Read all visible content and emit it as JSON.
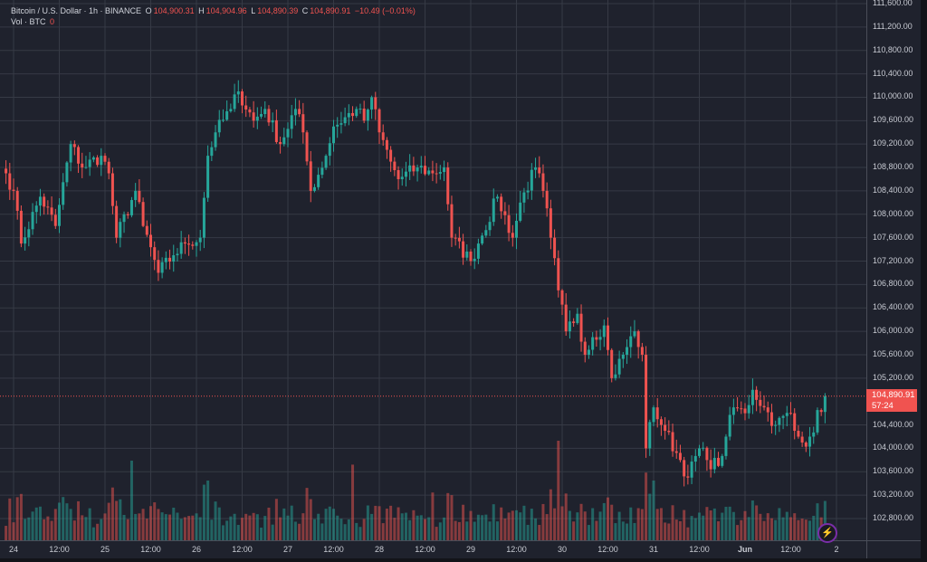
{
  "legend": {
    "symbol": "Bitcoin / U.S. Dollar · 1h · BINANCE",
    "o_label": "O",
    "o_value": "104,900.31",
    "h_label": "H",
    "h_value": "104,904.96",
    "l_label": "L",
    "l_value": "104,890.39",
    "c_label": "C",
    "c_value": "104,890.91",
    "change": "−10.49 (−0.01%)",
    "vol_label": "Vol · BTC",
    "vol_value": "0"
  },
  "price_box": {
    "price": "104,890.91",
    "countdown": "57:24"
  },
  "price_ticks": [
    "111,600.00",
    "111,200.00",
    "110,800.00",
    "110,400.00",
    "110,000.00",
    "109,600.00",
    "109,200.00",
    "108,800.00",
    "108,400.00",
    "108,000.00",
    "107,600.00",
    "107,200.00",
    "106,800.00",
    "106,400.00",
    "106,000.00",
    "105,600.00",
    "105,200.00",
    "104,400.00",
    "104,000.00",
    "103,600.00",
    "103,200.00",
    "102,800.00"
  ],
  "time_ticks": [
    "24",
    "12:00",
    "25",
    "12:00",
    "26",
    "12:00",
    "27",
    "12:00",
    "28",
    "12:00",
    "29",
    "12:00",
    "30",
    "12:00",
    "31",
    "12:00",
    "Jun",
    "12:00",
    "2"
  ],
  "colors": {
    "up": "#26a69a",
    "down": "#ef5350",
    "background": "#1f222d",
    "grid": "#363a45",
    "price_line": "#f05350"
  },
  "icons": {
    "logo": "lightning-bolt-icon"
  },
  "chart_data": {
    "type": "candlestick",
    "interval": "1h",
    "ylim": [
      102600,
      111700
    ],
    "current_price": 104890.91,
    "close_path": [
      [
        "05-23 22",
        108700
      ],
      [
        "05-24 00",
        108400
      ],
      [
        "05-24 02",
        107500
      ],
      [
        "05-24 07",
        108300
      ],
      [
        "05-24 11",
        107800
      ],
      [
        "05-24 15",
        109200
      ],
      [
        "05-24 18",
        108800
      ],
      [
        "05-24 23",
        109000
      ],
      [
        "05-25 01",
        108700
      ],
      [
        "05-25 03",
        107600
      ],
      [
        "05-25 08",
        108400
      ],
      [
        "05-25 10",
        107800
      ],
      [
        "05-25 14",
        107000
      ],
      [
        "05-25 18",
        107300
      ],
      [
        "05-25 21",
        107500
      ],
      [
        "05-26 01",
        107600
      ],
      [
        "05-26 03",
        109000
      ],
      [
        "05-26 05",
        109400
      ],
      [
        "05-26 09",
        109800
      ],
      [
        "05-26 11",
        110100
      ],
      [
        "05-26 15",
        109600
      ],
      [
        "05-26 18",
        109800
      ],
      [
        "05-26 22",
        109200
      ],
      [
        "05-27 02",
        109800
      ],
      [
        "05-27 04",
        109400
      ],
      [
        "05-27 06",
        108400
      ],
      [
        "05-27 10",
        109000
      ],
      [
        "05-27 12",
        109500
      ],
      [
        "05-27 18",
        109800
      ],
      [
        "05-27 20",
        109600
      ],
      [
        "05-27 22",
        110000
      ],
      [
        "05-28 00",
        109400
      ],
      [
        "05-28 03",
        108900
      ],
      [
        "05-28 05",
        108600
      ],
      [
        "05-28 10",
        108800
      ],
      [
        "05-28 14",
        108700
      ],
      [
        "05-28 17",
        108800
      ],
      [
        "05-28 19",
        107600
      ],
      [
        "05-29 00",
        107200
      ],
      [
        "05-29 02",
        107500
      ],
      [
        "05-29 07",
        108300
      ],
      [
        "05-29 11",
        107600
      ],
      [
        "05-29 13",
        108200
      ],
      [
        "05-29 17",
        108800
      ],
      [
        "05-29 19",
        108400
      ],
      [
        "05-29 21",
        107600
      ],
      [
        "05-29 23",
        106700
      ],
      [
        "05-30 01",
        106000
      ],
      [
        "05-30 04",
        106300
      ],
      [
        "05-30 06",
        105600
      ],
      [
        "05-30 08",
        105900
      ],
      [
        "05-30 11",
        106100
      ],
      [
        "05-30 13",
        105200
      ],
      [
        "05-30 16",
        105600
      ],
      [
        "05-30 19",
        106000
      ],
      [
        "05-30 21",
        105600
      ],
      [
        "05-30 22",
        104000
      ],
      [
        "05-31 00",
        104700
      ],
      [
        "05-31 03",
        104300
      ],
      [
        "05-31 07",
        103800
      ],
      [
        "05-31 09",
        103500
      ],
      [
        "05-31 12",
        104000
      ],
      [
        "05-31 14",
        103800
      ],
      [
        "05-31 17",
        103700
      ],
      [
        "05-31 19",
        104200
      ],
      [
        "05-31 21",
        104700
      ],
      [
        "06-01 00",
        104600
      ],
      [
        "06-01 02",
        105000
      ],
      [
        "06-01 05",
        104700
      ],
      [
        "06-01 08",
        104400
      ],
      [
        "06-01 12",
        104600
      ],
      [
        "06-01 13",
        104300
      ],
      [
        "06-01 15",
        104100
      ],
      [
        "06-01 17",
        104200
      ],
      [
        "06-01 21",
        104890.91
      ]
    ],
    "volume_spikes": [
      [
        "05-25 07",
        1.0
      ],
      [
        "05-26 03",
        0.75
      ],
      [
        "05-27 17",
        0.95
      ],
      [
        "05-28 14",
        0.6
      ],
      [
        "05-29 23",
        1.25
      ],
      [
        "05-30 22",
        0.85
      ],
      [
        "05-31 00",
        0.75
      ]
    ]
  }
}
